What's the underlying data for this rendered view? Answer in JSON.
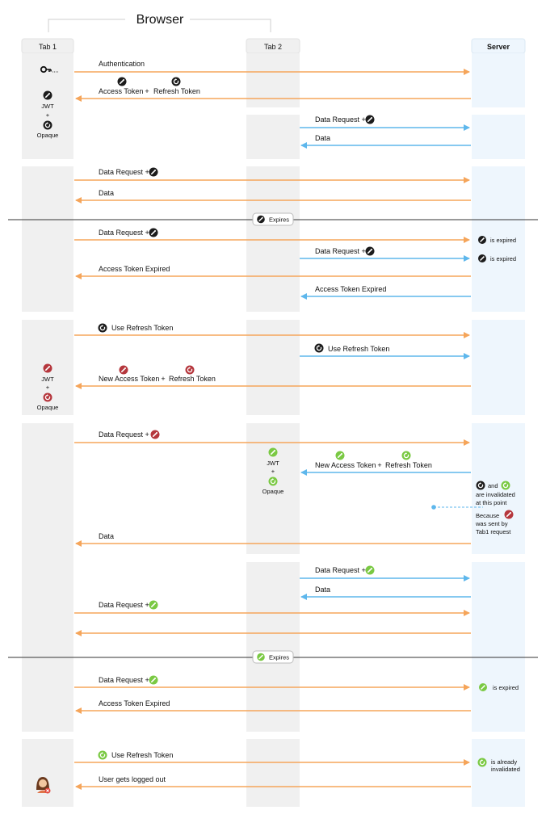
{
  "title": "Browser",
  "columns": {
    "tab1": "Tab 1",
    "tab2": "Tab 2",
    "server": "Server"
  },
  "colors": {
    "tab1_arrow": "#f5a55a",
    "tab2_arrow": "#5eb7ec",
    "lane": "#f0f0f0",
    "server_lane": "#eef6fd",
    "green": "#7ac943",
    "red": "#b5373d",
    "dark": "#1c1c1c"
  },
  "icons": {
    "key": "key-icon",
    "access_token": "pencil-token-icon",
    "refresh_token": "refresh-token-icon",
    "user": "user-avatar-icon"
  },
  "messages": {
    "authentication": "Authentication",
    "access_token": "Access Token",
    "plus": "+",
    "refresh_token": "Refresh Token",
    "data_request": "Data Request +",
    "data": "Data",
    "access_token_expired": "Access Token Expired",
    "use_refresh_token": "Use Refresh Token",
    "new_access_token": "New Access Token",
    "user_logged_out": "User gets logged out"
  },
  "tokens": {
    "jwt": "JWT",
    "plus": "+",
    "opaque": "Opaque"
  },
  "expires": "Expires",
  "server_notes": {
    "is_expired": "is expired",
    "and": "and",
    "invalidated_1": "are invalidated",
    "invalidated_2": "at this point",
    "because": "Because",
    "sent_by_1": "was sent by",
    "sent_by_2": "Tab1 request",
    "already_1": "is already",
    "already_2": "invalidated"
  }
}
